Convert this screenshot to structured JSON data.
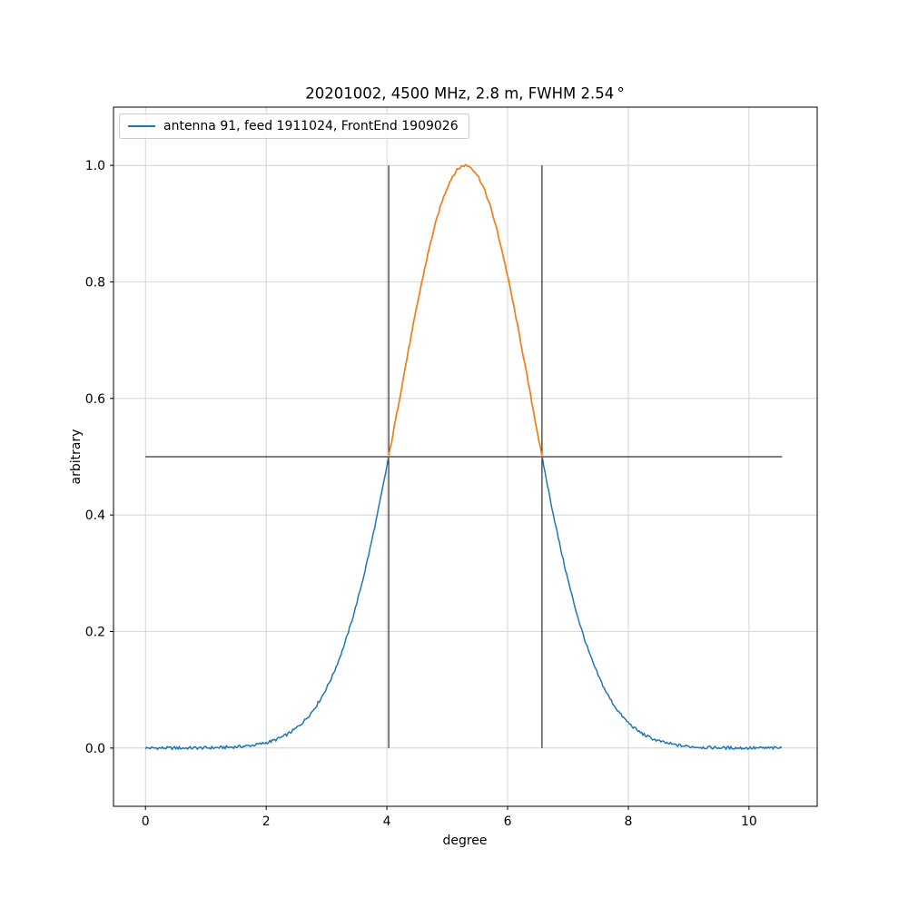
{
  "figure": {
    "background": "#ffffff"
  },
  "chart_data": {
    "type": "line",
    "title": "20201002, 4500 MHz, 2.8 m, FWHM 2.54 °",
    "xlabel": "degree",
    "ylabel": "arbitrary",
    "xlim": [
      -0.53,
      11.13
    ],
    "ylim": [
      -0.1,
      1.1
    ],
    "x_ticks": [
      0,
      2,
      4,
      6,
      8,
      10
    ],
    "x_tick_labels": [
      "0",
      "2",
      "4",
      "6",
      "8",
      "10"
    ],
    "y_ticks": [
      0.0,
      0.2,
      0.4,
      0.6,
      0.8,
      1.0
    ],
    "y_tick_labels": [
      "0.0",
      "0.2",
      "0.4",
      "0.6",
      "0.8",
      "1.0"
    ],
    "grid": true,
    "grid_color": "#cccccc",
    "legend_position": "upper left",
    "series": [
      {
        "name": "antenna 91, feed 1911024, FrontEnd 1909026",
        "color": "#1f77b4",
        "above_half_color": "#ff7f0e",
        "model": "gaussian",
        "center": 5.3,
        "fwhm": 2.54,
        "amplitude": 1.0,
        "x_start": 0.0,
        "x_end": 10.55,
        "sample_step": 0.02,
        "noise_amplitude": 0.0025,
        "points": [
          [
            0.0,
            0.0
          ],
          [
            0.5,
            0.0
          ],
          [
            1.0,
            0.0
          ],
          [
            1.5,
            0.002
          ],
          [
            2.0,
            0.009
          ],
          [
            2.5,
            0.034
          ],
          [
            3.0,
            0.103
          ],
          [
            3.5,
            0.248
          ],
          [
            4.0,
            0.484
          ],
          [
            4.5,
            0.76
          ],
          [
            5.0,
            0.962
          ],
          [
            5.3,
            1.0
          ],
          [
            5.5,
            0.983
          ],
          [
            6.0,
            0.81
          ],
          [
            6.5,
            0.539
          ],
          [
            7.0,
            0.289
          ],
          [
            7.5,
            0.125
          ],
          [
            8.0,
            0.044
          ],
          [
            8.5,
            0.012
          ],
          [
            9.0,
            0.003
          ],
          [
            9.5,
            0.001
          ],
          [
            10.0,
            0.0
          ],
          [
            10.5,
            0.0
          ]
        ]
      }
    ],
    "annotations": {
      "half_power_line": {
        "y": 0.5,
        "x_start": 0.0,
        "x_end": 10.55,
        "color": "#000000"
      },
      "fwhm_markers": [
        {
          "x": 4.03,
          "y_start": 0.0,
          "y_end": 1.0,
          "color": "#000000"
        },
        {
          "x": 6.57,
          "y_start": 0.0,
          "y_end": 1.0,
          "color": "#000000"
        }
      ]
    }
  }
}
